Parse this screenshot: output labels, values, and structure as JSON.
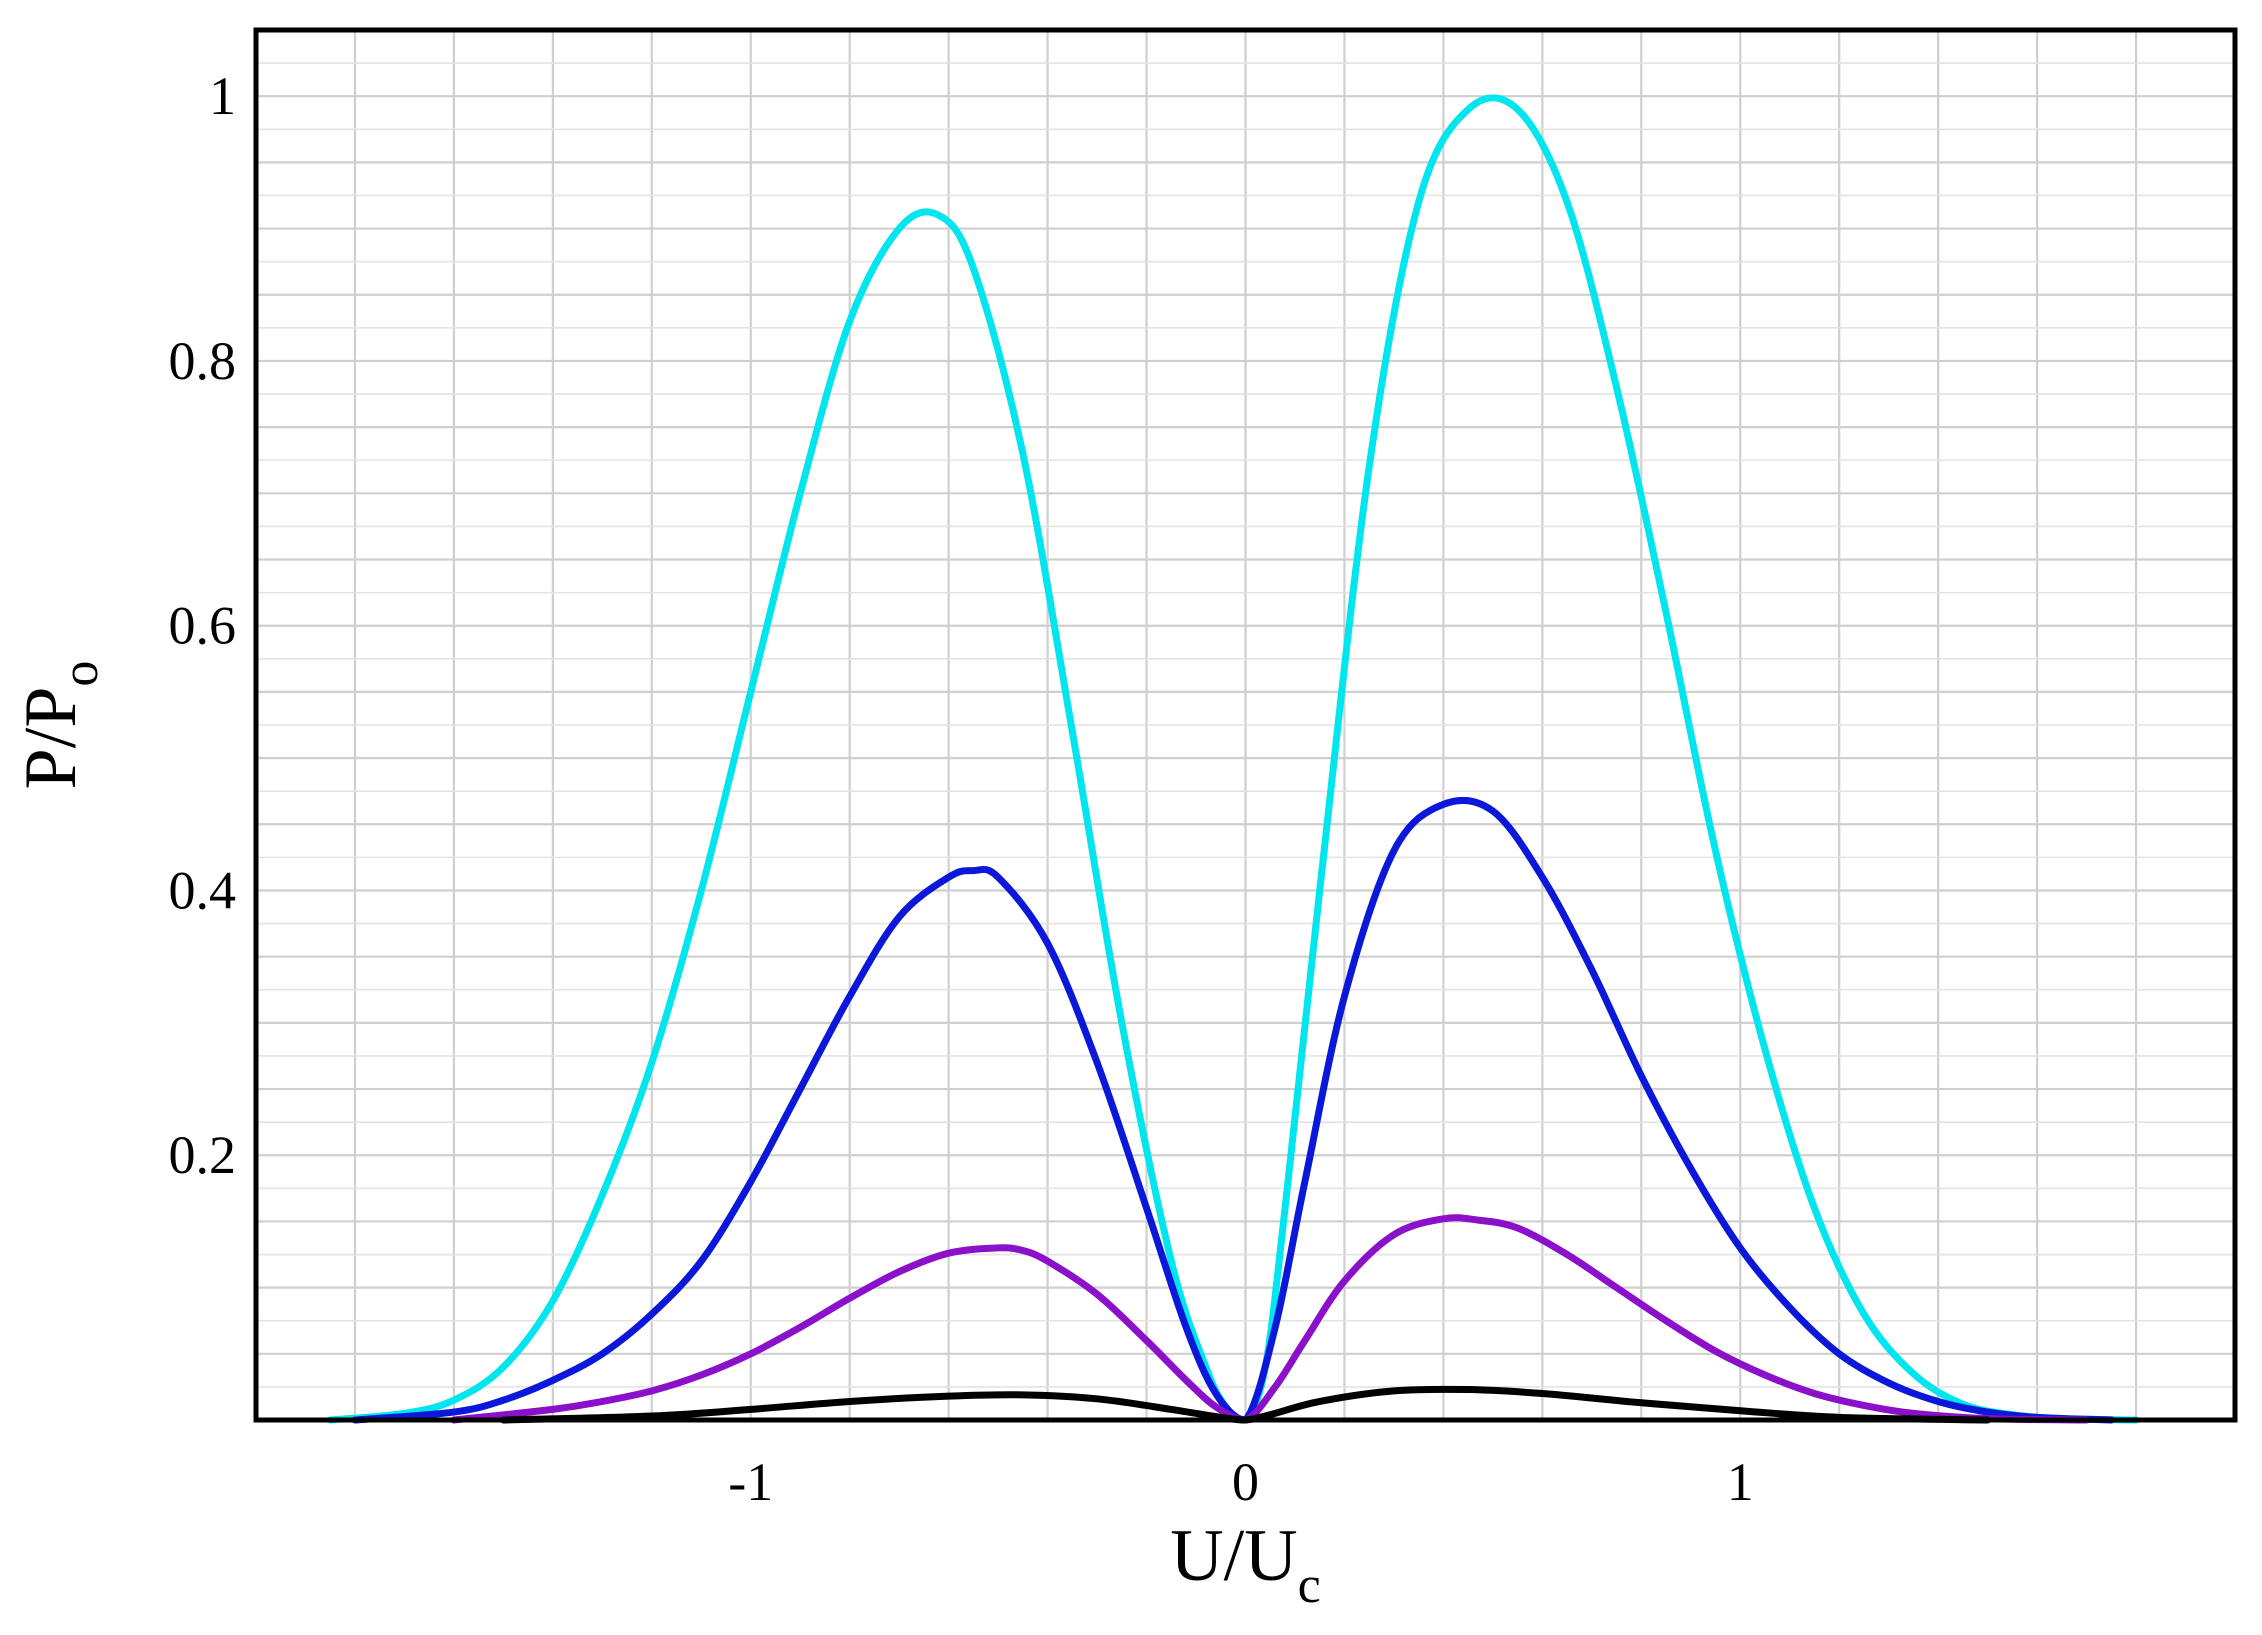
{
  "chart_data": {
    "type": "line",
    "title": "",
    "xlabel": {
      "main": "U/U",
      "sub": "c"
    },
    "ylabel": {
      "main": "P/P",
      "sub": "o"
    },
    "xlim": [
      -2.0,
      2.0
    ],
    "ylim": [
      0.0,
      1.05
    ],
    "x_ticks": [
      -1,
      0,
      1
    ],
    "x_tick_labels": [
      "-1",
      "0",
      "1"
    ],
    "y_ticks": [
      0.2,
      0.4,
      0.6,
      0.8,
      1.0
    ],
    "y_tick_labels": [
      "0.2",
      "0.4",
      "0.6",
      "0.8",
      "1"
    ],
    "grid": true,
    "legend": "none",
    "series": [
      {
        "color": "#00e5ee",
        "x": [
          -1.85,
          -1.7,
          -1.6,
          -1.5,
          -1.4,
          -1.3,
          -1.2,
          -1.1,
          -1.0,
          -0.9,
          -0.8,
          -0.7,
          -0.62,
          -0.55,
          -0.45,
          -0.35,
          -0.25,
          -0.15,
          -0.08,
          -0.04,
          0.0,
          0.04,
          0.08,
          0.15,
          0.25,
          0.35,
          0.45,
          0.55,
          0.65,
          0.75,
          0.85,
          0.95,
          1.05,
          1.15,
          1.25,
          1.35,
          1.45,
          1.55,
          1.65,
          1.8
        ],
        "y": [
          0.0,
          0.005,
          0.015,
          0.04,
          0.09,
          0.17,
          0.27,
          0.4,
          0.55,
          0.7,
          0.83,
          0.9,
          0.91,
          0.87,
          0.73,
          0.52,
          0.3,
          0.12,
          0.04,
          0.01,
          0.0,
          0.04,
          0.16,
          0.4,
          0.72,
          0.92,
          0.99,
          0.99,
          0.92,
          0.78,
          0.61,
          0.43,
          0.28,
          0.16,
          0.08,
          0.035,
          0.012,
          0.004,
          0.001,
          0.0
        ]
      },
      {
        "color": "#0b18d9",
        "x": [
          -1.8,
          -1.6,
          -1.5,
          -1.4,
          -1.3,
          -1.2,
          -1.1,
          -1.0,
          -0.9,
          -0.8,
          -0.7,
          -0.6,
          -0.55,
          -0.5,
          -0.4,
          -0.3,
          -0.2,
          -0.12,
          -0.06,
          0.0,
          0.06,
          0.12,
          0.2,
          0.3,
          0.4,
          0.5,
          0.6,
          0.7,
          0.8,
          0.9,
          1.0,
          1.1,
          1.2,
          1.3,
          1.4,
          1.5,
          1.6,
          1.75
        ],
        "y": [
          0.0,
          0.006,
          0.015,
          0.03,
          0.05,
          0.08,
          0.12,
          0.18,
          0.25,
          0.32,
          0.38,
          0.41,
          0.415,
          0.41,
          0.36,
          0.27,
          0.16,
          0.07,
          0.02,
          0.0,
          0.07,
          0.18,
          0.32,
          0.43,
          0.465,
          0.46,
          0.41,
          0.34,
          0.26,
          0.19,
          0.13,
          0.085,
          0.05,
          0.028,
          0.014,
          0.006,
          0.002,
          0.0
        ]
      },
      {
        "color": "#8b10c9",
        "x": [
          -1.6,
          -1.4,
          -1.3,
          -1.2,
          -1.1,
          -1.0,
          -0.9,
          -0.8,
          -0.7,
          -0.6,
          -0.5,
          -0.45,
          -0.4,
          -0.3,
          -0.2,
          -0.12,
          -0.06,
          0.0,
          0.06,
          0.12,
          0.2,
          0.3,
          0.4,
          0.47,
          0.55,
          0.65,
          0.75,
          0.85,
          0.95,
          1.05,
          1.15,
          1.25,
          1.35,
          1.5,
          1.7
        ],
        "y": [
          0.0,
          0.008,
          0.014,
          0.022,
          0.034,
          0.05,
          0.07,
          0.092,
          0.112,
          0.126,
          0.13,
          0.128,
          0.12,
          0.095,
          0.06,
          0.03,
          0.01,
          0.0,
          0.025,
          0.06,
          0.105,
          0.14,
          0.152,
          0.151,
          0.145,
          0.125,
          0.1,
          0.075,
          0.052,
          0.034,
          0.02,
          0.011,
          0.005,
          0.001,
          0.0
        ]
      },
      {
        "color": "#000000",
        "x": [
          -1.5,
          -1.2,
          -1.0,
          -0.8,
          -0.6,
          -0.45,
          -0.3,
          -0.15,
          -0.05,
          0.0,
          0.05,
          0.15,
          0.3,
          0.45,
          0.6,
          0.8,
          1.0,
          1.2,
          1.5
        ],
        "y": [
          0.0,
          0.003,
          0.008,
          0.014,
          0.018,
          0.019,
          0.016,
          0.008,
          0.002,
          0.0,
          0.004,
          0.014,
          0.022,
          0.023,
          0.02,
          0.013,
          0.007,
          0.002,
          0.0
        ]
      }
    ]
  }
}
